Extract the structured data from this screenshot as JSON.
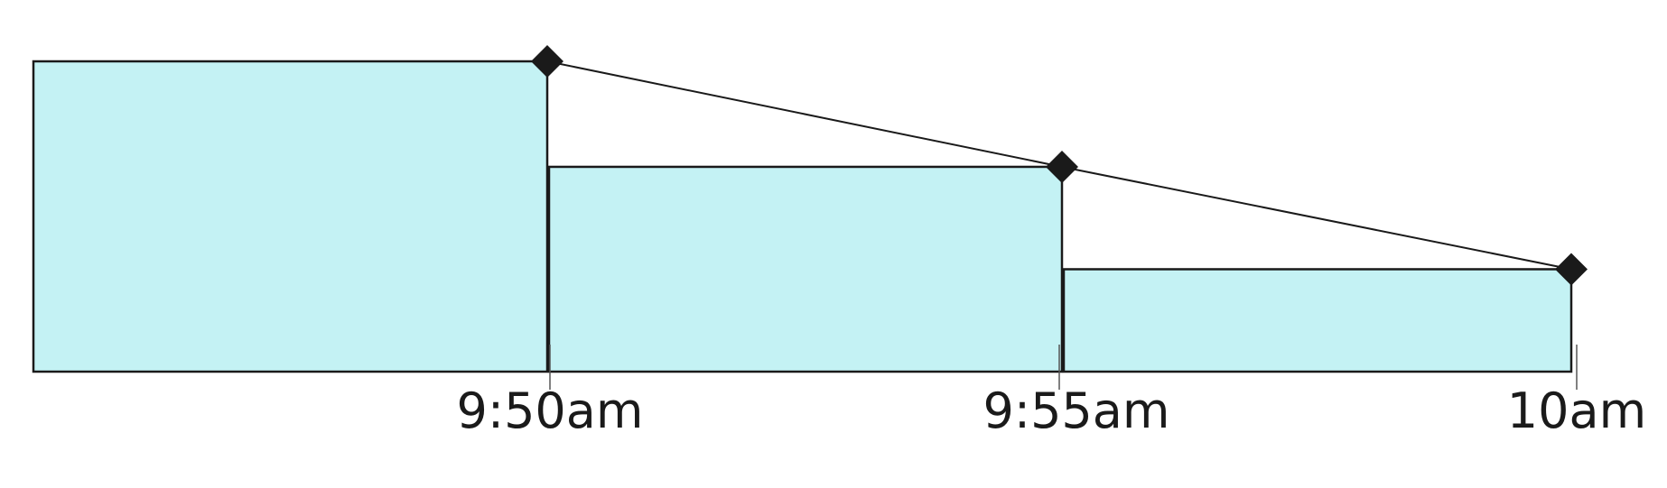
{
  "diagram": {
    "fill_color": "#c4f2f4",
    "stroke_color": "#1a1a1a",
    "marker_color": "#1a1a1a",
    "marker_shape": "diamond",
    "time_labels": [
      "9:50am",
      "9:55am",
      "10am"
    ],
    "level_ratios": [
      1.0,
      0.66,
      0.33
    ]
  }
}
